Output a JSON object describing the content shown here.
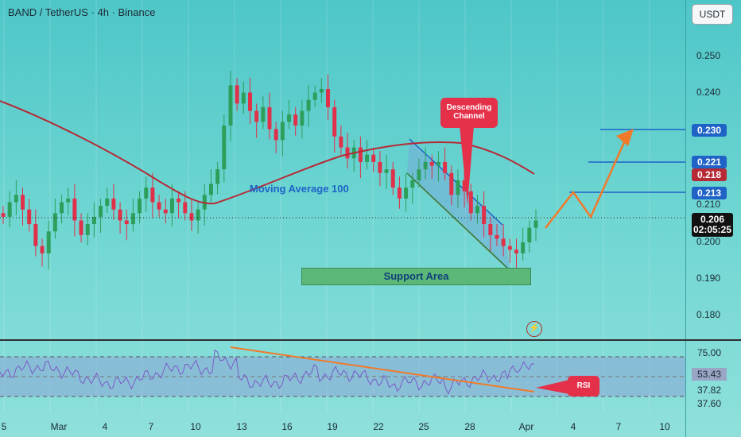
{
  "header": {
    "title": "BAND / TetherUS · 4h · Binance",
    "currency": "USDT"
  },
  "y_axis": {
    "ticks": [
      "0.250",
      "0.240",
      "0.230",
      "0.221",
      "0.218",
      "0.213",
      "0.210",
      "0.206",
      "0.200",
      "0.190",
      "0.180"
    ]
  },
  "price_badges": {
    "b230": "0.230",
    "b221": "0.221",
    "b218": "0.218",
    "b213": "0.213",
    "b206": "0.206",
    "countdown": "02:05:25"
  },
  "rsi_axis": {
    "ticks": [
      "75.00",
      "53.43",
      "37.82",
      "37.60"
    ]
  },
  "x_axis": {
    "ticks": [
      "5",
      "Mar",
      "4",
      "7",
      "10",
      "13",
      "16",
      "19",
      "22",
      "25",
      "28",
      "Apr",
      "4",
      "7",
      "10"
    ]
  },
  "annotations": {
    "moving_average": "Moving Average 100",
    "support": "Support Area",
    "descending_l1": "Descending",
    "descending_l2": "Channel",
    "rsi": "RSI"
  },
  "colors": {
    "bull": "#2e9e5b",
    "bear": "#e0304a",
    "ma": "#b52a35",
    "channel": "#1f63c7",
    "projection": "#f07a2a",
    "level_line": "#1f63c7"
  },
  "chart_data": {
    "type": "candlestick",
    "title": "BAND / TetherUS · 4h · Binance",
    "x_axis_labels": [
      "5",
      "Mar",
      "4",
      "7",
      "10",
      "13",
      "16",
      "19",
      "22",
      "25",
      "28",
      "Apr",
      "4",
      "7",
      "10"
    ],
    "ylim": [
      0.175,
      0.262
    ],
    "levels": [
      0.23,
      0.221,
      0.213
    ],
    "moving_average_100_last": 0.218,
    "last_price": 0.206,
    "series": [
      {
        "name": "close",
        "values": [
          0.207,
          0.211,
          0.213,
          0.209,
          0.205,
          0.199,
          0.197,
          0.203,
          0.208,
          0.211,
          0.212,
          0.206,
          0.202,
          0.205,
          0.207,
          0.21,
          0.212,
          0.209,
          0.206,
          0.205,
          0.208,
          0.212,
          0.215,
          0.211,
          0.209,
          0.208,
          0.212,
          0.211,
          0.208,
          0.206,
          0.209,
          0.213,
          0.216,
          0.22,
          0.232,
          0.243,
          0.238,
          0.241,
          0.236,
          0.233,
          0.237,
          0.231,
          0.228,
          0.233,
          0.235,
          0.232,
          0.236,
          0.239,
          0.241,
          0.242,
          0.237,
          0.229,
          0.226,
          0.223,
          0.226,
          0.222,
          0.224,
          0.222,
          0.219,
          0.22,
          0.215,
          0.212,
          0.215,
          0.217,
          0.22,
          0.222,
          0.221,
          0.222,
          0.219,
          0.213,
          0.217,
          0.214,
          0.208,
          0.21,
          0.205,
          0.202,
          0.201,
          0.199,
          0.198,
          0.197,
          0.2,
          0.204,
          0.206
        ]
      }
    ],
    "rsi": {
      "levels": [
        75.0,
        37.82,
        37.6
      ],
      "current": 53.43
    }
  }
}
